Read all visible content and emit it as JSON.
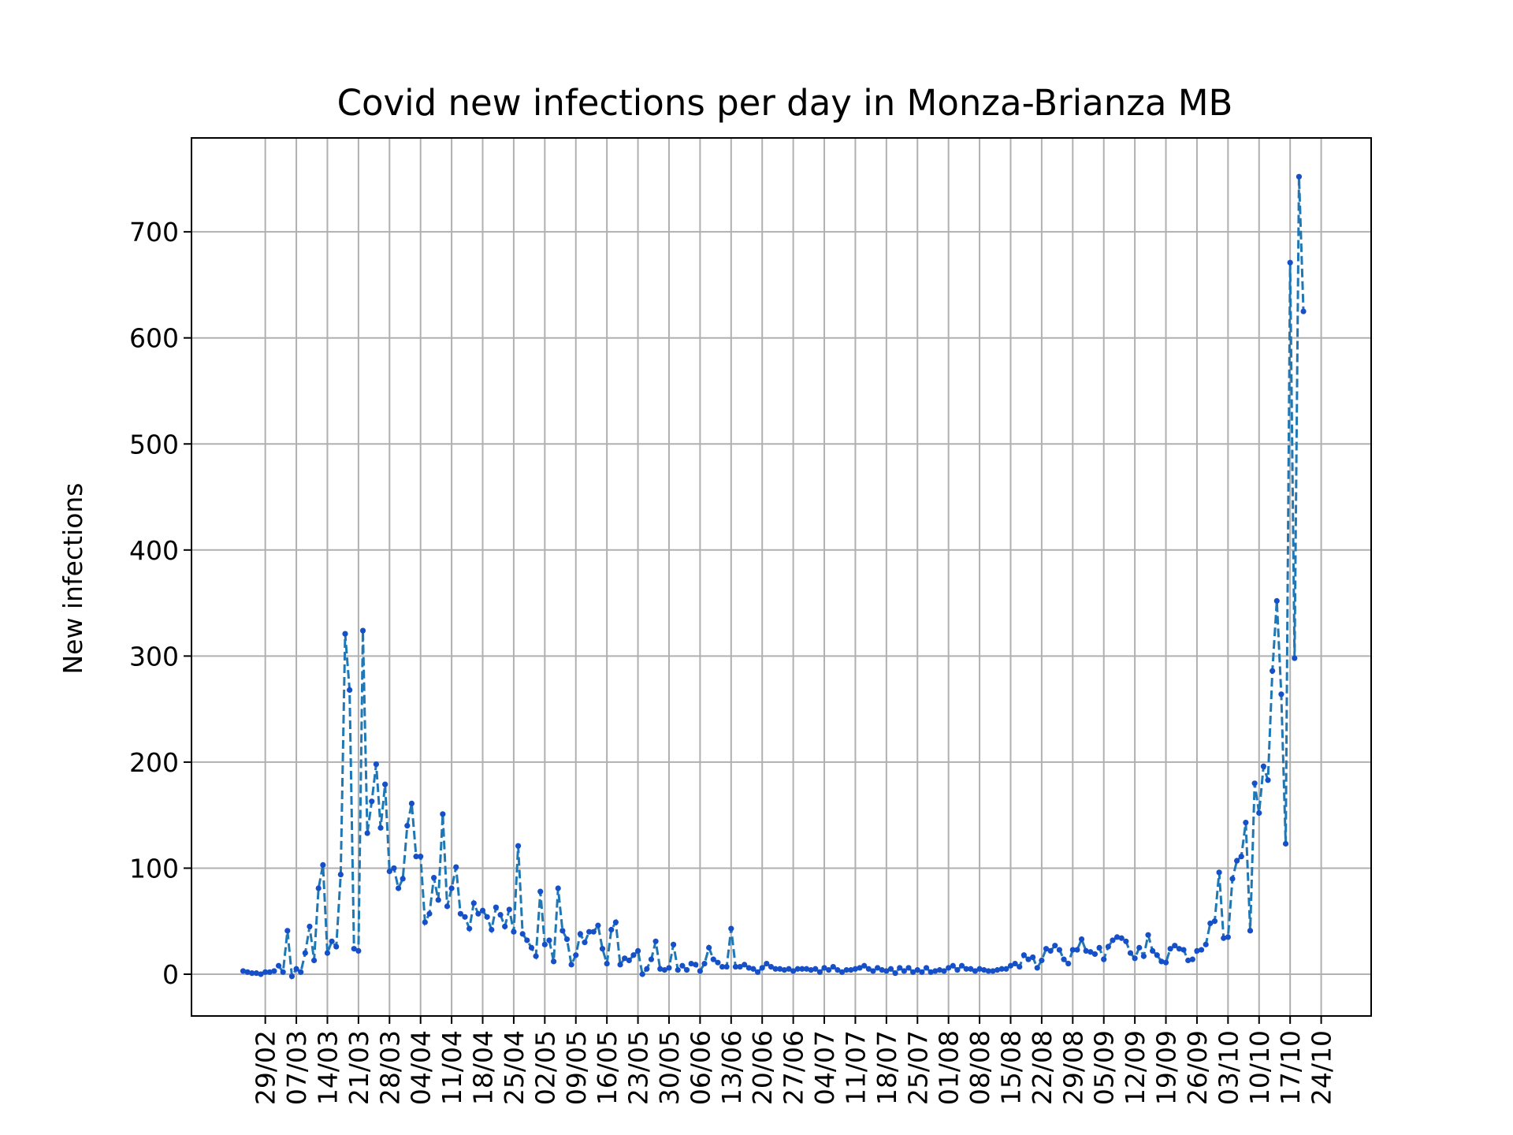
{
  "chart_data": {
    "type": "line",
    "title": "Covid new infections per day in Monza-Brianza MB",
    "xlabel": "",
    "ylabel": "New infections",
    "x_start": "24/02",
    "x_end": "25/10",
    "x_ticks": [
      "29/02",
      "07/03",
      "14/03",
      "21/03",
      "28/03",
      "04/04",
      "11/04",
      "18/04",
      "25/04",
      "02/05",
      "09/05",
      "16/05",
      "23/05",
      "30/05",
      "06/06",
      "13/06",
      "20/06",
      "27/06",
      "04/07",
      "11/07",
      "18/07",
      "25/07",
      "01/08",
      "08/08",
      "15/08",
      "22/08",
      "29/08",
      "05/09",
      "12/09",
      "19/09",
      "26/09",
      "03/10",
      "10/10",
      "17/10",
      "24/10"
    ],
    "ylim": [
      -40,
      790
    ],
    "y_ticks": [
      0,
      100,
      200,
      300,
      400,
      500,
      600,
      700
    ],
    "grid": true,
    "line_style": "dashed",
    "marker": "dot",
    "colors": {
      "line": "#1f77b4",
      "marker": "#1650c8"
    },
    "series": [
      {
        "values": [
          3,
          2,
          1,
          1,
          0,
          2,
          2,
          3,
          8,
          2,
          41,
          -2,
          5,
          2,
          20,
          45,
          13,
          81,
          103,
          20,
          31,
          26,
          94,
          321,
          268,
          24,
          22,
          324,
          133,
          163,
          198,
          138,
          179,
          97,
          100,
          81,
          90,
          140,
          161,
          111,
          111,
          49,
          57,
          91,
          70,
          151,
          64,
          81,
          101,
          57,
          54,
          43,
          67,
          57,
          60,
          54,
          42,
          63,
          56,
          45,
          61,
          40,
          121,
          38,
          32,
          25,
          17,
          78,
          28,
          32,
          12,
          81,
          41,
          33,
          9,
          18,
          38,
          30,
          40,
          40,
          46,
          24,
          10,
          42,
          49,
          9,
          15,
          13,
          18,
          22,
          0,
          5,
          14,
          31,
          5,
          4,
          6,
          28,
          4,
          8,
          4,
          10,
          9,
          3,
          10,
          25,
          14,
          11,
          7,
          7,
          43,
          7,
          7,
          9,
          6,
          5,
          2,
          6,
          10,
          7,
          5,
          5,
          4,
          5,
          3,
          5,
          5,
          5,
          4,
          5,
          2,
          6,
          4,
          7,
          4,
          2,
          4,
          4,
          5,
          6,
          8,
          5,
          3,
          6,
          4,
          3,
          5,
          1,
          6,
          3,
          6,
          2,
          4,
          2,
          6,
          2,
          3,
          4,
          3,
          6,
          8,
          4,
          8,
          5,
          5,
          3,
          5,
          4,
          3,
          3,
          4,
          5,
          5,
          8,
          10,
          7,
          18,
          14,
          16,
          6,
          13,
          24,
          22,
          27,
          23,
          14,
          10,
          23,
          23,
          33,
          22,
          21,
          19,
          25,
          14,
          26,
          32,
          35,
          34,
          31,
          20,
          15,
          25,
          17,
          37,
          22,
          18,
          12,
          11,
          24,
          27,
          24,
          23,
          13,
          14,
          22,
          23,
          28,
          48,
          50,
          96,
          34,
          35,
          90,
          107,
          111,
          143,
          41,
          180,
          152,
          196,
          183,
          286,
          352,
          264,
          123,
          671,
          298,
          752,
          625
        ]
      }
    ]
  }
}
